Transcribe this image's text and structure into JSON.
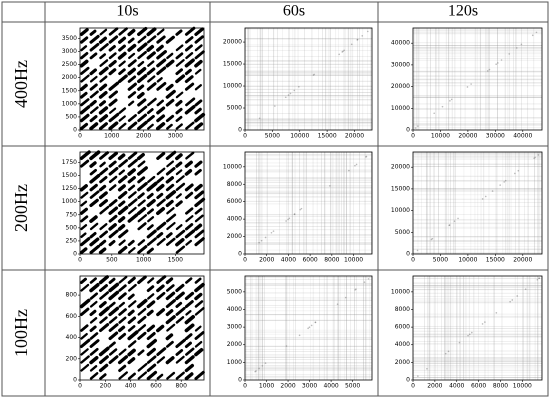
{
  "table": {
    "columns": [
      "10s",
      "60s",
      "120s"
    ],
    "rows": [
      {
        "label": "400Hz",
        "panels": [
          {
            "lim": [
              0,
              3900
            ],
            "xticks": [
              0,
              1000,
              2000,
              3000
            ],
            "yticks": [
              0,
              500,
              1000,
              1500,
              2000,
              2500,
              3000,
              3500
            ]
          },
          {
            "lim": [
              0,
              23200
            ],
            "xticks": [
              0,
              5000,
              10000,
              15000,
              20000
            ],
            "yticks": [
              0,
              5000,
              10000,
              15000,
              20000
            ]
          },
          {
            "lim": [
              0,
              47000
            ],
            "xticks": [
              0,
              10000,
              20000,
              30000,
              40000
            ],
            "yticks": [
              0,
              10000,
              20000,
              30000,
              40000
            ]
          }
        ]
      },
      {
        "label": "200Hz",
        "panels": [
          {
            "lim": [
              0,
              1950
            ],
            "xticks": [
              0,
              500,
              1000,
              1500
            ],
            "yticks": [
              0,
              250,
              500,
              750,
              1000,
              1250,
              1500,
              1750
            ]
          },
          {
            "lim": [
              0,
              11700
            ],
            "xticks": [
              0,
              2000,
              4000,
              6000,
              8000,
              10000
            ],
            "yticks": [
              0,
              2000,
              4000,
              6000,
              8000,
              10000
            ]
          },
          {
            "lim": [
              0,
              23500
            ],
            "xticks": [
              0,
              5000,
              10000,
              15000,
              20000
            ],
            "yticks": [
              0,
              5000,
              10000,
              15000,
              20000
            ]
          }
        ]
      },
      {
        "label": "100Hz",
        "panels": [
          {
            "lim": [
              0,
              980
            ],
            "xticks": [
              0,
              200,
              400,
              600,
              800
            ],
            "yticks": [
              0,
              200,
              400,
              600,
              800
            ]
          },
          {
            "lim": [
              0,
              5900
            ],
            "xticks": [
              0,
              1000,
              2000,
              3000,
              4000,
              5000
            ],
            "yticks": [
              0,
              1000,
              2000,
              3000,
              4000,
              5000
            ]
          },
          {
            "lim": [
              0,
              11800
            ],
            "xticks": [
              0,
              2000,
              4000,
              6000,
              8000,
              10000
            ],
            "yticks": [
              0,
              2000,
              4000,
              6000,
              8000,
              10000
            ]
          }
        ]
      }
    ]
  }
}
